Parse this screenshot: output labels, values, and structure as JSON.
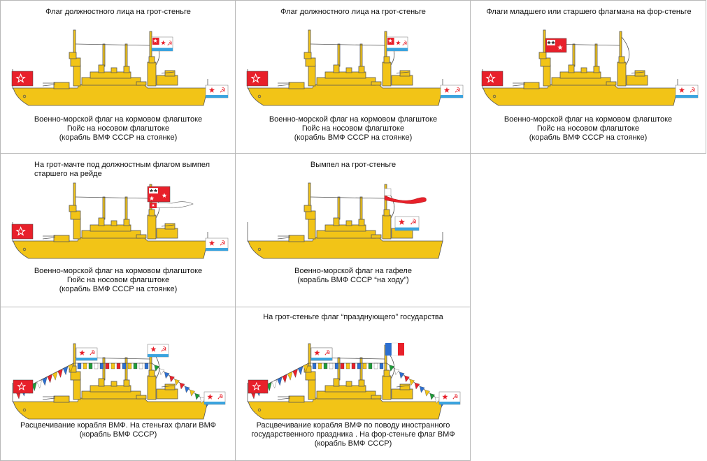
{
  "colors": {
    "hull": "#f2c417",
    "outline": "#555555",
    "flag_red": "#e8202a",
    "flag_blue": "#3aa3de",
    "white": "#ffffff"
  },
  "panels": [
    {
      "title": "Флаг должностного лица на грот-стеньге",
      "caption": "Военно-морской флаг на кормовом флагштоке\nГюйс на носовом флагштоке\n(корабль ВМФ СССР на стоянке)",
      "icons": [
        "naval-ensign-icon",
        "official-flag-icon",
        "jack-flag-icon"
      ]
    },
    {
      "title": "Флаг должностного лица на грот-стеньге",
      "caption": "Военно-морской флаг на кормовом флагштоке\nГюйс на носовом флагштоке\n(корабль ВМФ СССР на стоянке)",
      "icons": [
        "naval-ensign-icon",
        "official-flag-icon",
        "jack-flag-icon"
      ]
    },
    {
      "title": "Флаги младшего или старшего флагмана на фор-стеньге",
      "caption": "Военно-морской флаг на кормовом флагштоке\nГюйс на носовом флагштоке\n(корабль ВМФ СССР на стоянке)",
      "icons": [
        "naval-ensign-icon",
        "flag-officer-flag-icon",
        "jack-flag-icon"
      ]
    },
    {
      "title": "На грот-мачте под должностным флагом вымпел\nстаршего на рейде",
      "caption": "Военно-морской флаг на кормовом флагштоке\nГюйс на носовом флагштоке\n(корабль ВМФ СССР на стоянке)",
      "icons": [
        "naval-ensign-icon",
        "senior-officer-pennant-icon",
        "jack-flag-icon"
      ]
    },
    {
      "title": "Вымпел на грот-стеньге",
      "caption": "Военно-морской флаг на гафеле\n(корабль ВМФ СССР “на ходу”)",
      "icons": [
        "commission-pennant-icon",
        "naval-ensign-icon"
      ]
    },
    {
      "title": "",
      "caption": "Расцвечивание корабля ВМФ. На стеньгах флаги ВМФ\n(корабль ВМФ СССР)",
      "icons": [
        "naval-ensign-icon",
        "signal-flags-icon",
        "jack-flag-icon"
      ]
    },
    {
      "title": "На грот-стеньге флаг “празднующего” государства",
      "caption": "Расцвечивание корабля ВМФ по поводу иностранного\nгосударственного  праздника . На фор-стеньге флаг ВМФ\n(корабль ВМФ СССР)",
      "icons": [
        "naval-ensign-icon",
        "signal-flags-icon",
        "french-flag-icon",
        "jack-flag-icon"
      ]
    }
  ]
}
